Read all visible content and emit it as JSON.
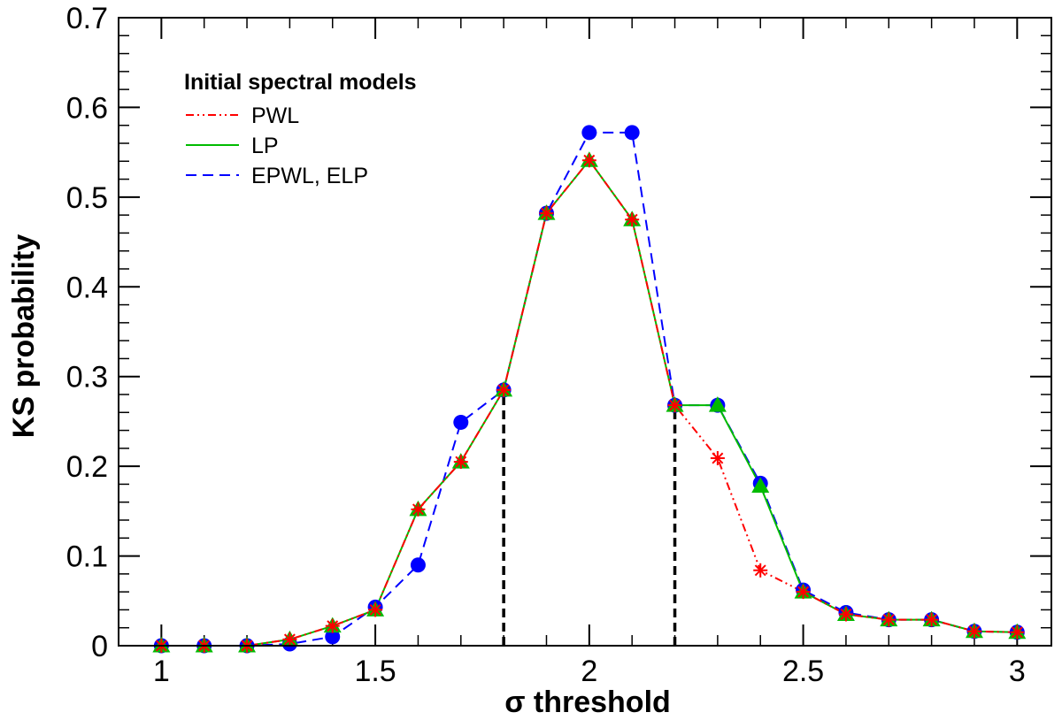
{
  "chart_data": {
    "type": "line",
    "title": "",
    "xlabel": "σ threshold",
    "ylabel": "KS probability",
    "xlim": [
      0.9,
      3.08
    ],
    "ylim": [
      0,
      0.7
    ],
    "xticks": [
      1,
      1.5,
      2,
      2.5,
      3
    ],
    "xtick_labels": [
      "1",
      "1.5",
      "2",
      "2.5",
      "3"
    ],
    "yticks": [
      0,
      0.1,
      0.2,
      0.3,
      0.4,
      0.5,
      0.6,
      0.7
    ],
    "ytick_labels": [
      "0",
      "0.1",
      "0.2",
      "0.3",
      "0.4",
      "0.5",
      "0.6",
      "0.7"
    ],
    "grid": false,
    "legend": {
      "title": "Initial spectral models",
      "position": "top-left"
    },
    "x": [
      1.0,
      1.1,
      1.2,
      1.3,
      1.4,
      1.5,
      1.6,
      1.7,
      1.8,
      1.9,
      2.0,
      2.1,
      2.2,
      2.3,
      2.4,
      2.5,
      2.6,
      2.7,
      2.8,
      2.9,
      3.0
    ],
    "series": [
      {
        "name": "EPWL, ELP",
        "color": "#0000ff",
        "line_style": "dashed",
        "marker": "circle",
        "values": [
          0.0,
          0.0,
          0.0,
          0.002,
          0.01,
          0.043,
          0.09,
          0.249,
          0.285,
          0.482,
          0.572,
          0.572,
          0.268,
          0.268,
          0.181,
          0.062,
          0.037,
          0.029,
          0.029,
          0.016,
          0.015
        ]
      },
      {
        "name": "LP",
        "color": "#00bb00",
        "line_style": "solid",
        "marker": "triangle",
        "values": [
          0.0,
          0.0,
          0.0,
          0.007,
          0.022,
          0.04,
          0.152,
          0.205,
          0.285,
          0.482,
          0.541,
          0.475,
          0.268,
          0.268,
          0.178,
          0.06,
          0.035,
          0.029,
          0.029,
          0.016,
          0.015
        ]
      },
      {
        "name": "PWL",
        "color": "#ff0000",
        "line_style": "dash-dot-dot",
        "marker": "star",
        "values": [
          0.0,
          0.0,
          0.0,
          0.007,
          0.022,
          0.04,
          0.152,
          0.205,
          0.285,
          0.482,
          0.541,
          0.475,
          0.268,
          0.209,
          0.084,
          0.06,
          0.035,
          0.029,
          0.029,
          0.016,
          0.015
        ]
      }
    ],
    "reference_lines": [
      {
        "x": 1.8,
        "y_top": 0.285,
        "color": "#000000",
        "style": "dashed"
      },
      {
        "x": 2.2,
        "y_top": 0.268,
        "color": "#000000",
        "style": "dashed"
      }
    ]
  }
}
